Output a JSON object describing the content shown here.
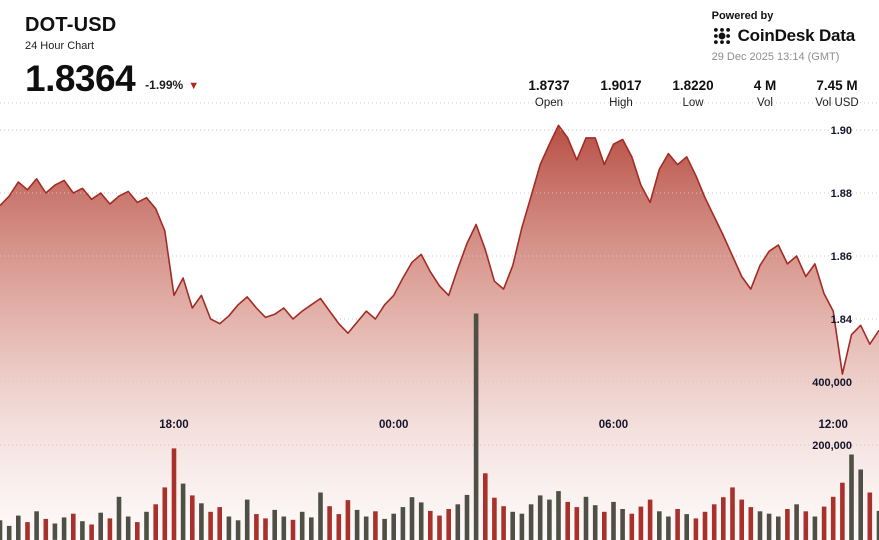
{
  "header": {
    "symbol": "DOT-USD",
    "subtitle": "24 Hour Chart",
    "price": "1.8364",
    "change": "-1.99%",
    "powered_by": "Powered by",
    "brand": "CoinDesk Data",
    "timestamp": "29 Dec 2025 13:14 (GMT)"
  },
  "icons": {
    "down_triangle": "▼"
  },
  "stats": [
    {
      "value": "1.8737",
      "label": "Open"
    },
    {
      "value": "1.9017",
      "label": "High"
    },
    {
      "value": "1.8220",
      "label": "Low"
    },
    {
      "value": "4 M",
      "label": "Vol"
    },
    {
      "value": "7.45 M",
      "label": "Vol USD"
    }
  ],
  "chart_data": {
    "type": "area",
    "title": "DOT-USD 24 Hour Chart",
    "open": 1.8737,
    "high": 1.9017,
    "low": 1.822,
    "close": 1.8364,
    "volume": "4 M",
    "volume_usd": "7.45 M",
    "x_axis": {
      "ticks": [
        {
          "label": "18:00",
          "index": 19
        },
        {
          "label": "00:00",
          "index": 43
        },
        {
          "label": "06:00",
          "index": 67
        },
        {
          "label": "12:00",
          "index": 91
        }
      ]
    },
    "price_axis": {
      "gridlines": [
        1.9086,
        1.9,
        1.88,
        1.86,
        1.84
      ],
      "labels": [
        {
          "value": 1.9,
          "text": "1.90"
        },
        {
          "value": 1.88,
          "text": "1.88"
        },
        {
          "value": 1.86,
          "text": "1.86"
        },
        {
          "value": 1.84,
          "text": "1.84"
        }
      ]
    },
    "volume_axis": {
      "labels": [
        "400,000",
        "200,000"
      ],
      "tick_values": [
        400000,
        200000
      ]
    },
    "price": [
      1.876,
      1.879,
      1.8835,
      1.881,
      1.8845,
      1.88,
      1.8825,
      1.884,
      1.88,
      1.8815,
      1.878,
      1.88,
      1.8765,
      1.879,
      1.8805,
      1.877,
      1.8785,
      1.875,
      1.868,
      1.8475,
      1.853,
      1.8435,
      1.8475,
      1.84,
      1.8385,
      1.841,
      1.8445,
      1.847,
      1.8435,
      1.8405,
      1.8415,
      1.8435,
      1.84,
      1.8425,
      1.8445,
      1.8465,
      1.8425,
      1.8385,
      1.8355,
      1.839,
      1.8425,
      1.84,
      1.8445,
      1.8475,
      1.853,
      1.858,
      1.8605,
      1.855,
      1.8505,
      1.8475,
      1.856,
      1.864,
      1.87,
      1.862,
      1.852,
      1.8495,
      1.857,
      1.869,
      1.879,
      1.889,
      1.8955,
      1.9015,
      1.8975,
      1.8905,
      1.8975,
      1.8975,
      1.889,
      1.8955,
      1.897,
      1.8915,
      1.8825,
      1.877,
      1.8875,
      1.8925,
      1.889,
      1.8915,
      1.8855,
      1.8785,
      1.8725,
      1.8665,
      1.86,
      1.8535,
      1.8495,
      1.857,
      1.8615,
      1.8635,
      1.8575,
      1.86,
      1.8535,
      1.8575,
      1.848,
      1.8425,
      1.8225,
      1.835,
      1.838,
      1.832,
      1.8364
    ],
    "volume_bars": [
      42000,
      30000,
      52000,
      38000,
      61000,
      45000,
      35000,
      48000,
      56000,
      40000,
      33000,
      58000,
      46000,
      92000,
      50000,
      38000,
      60000,
      76000,
      112000,
      195000,
      120000,
      95000,
      78000,
      60000,
      70000,
      50000,
      42000,
      86000,
      55000,
      46000,
      64000,
      50000,
      43000,
      60000,
      48000,
      101000,
      72000,
      55000,
      85000,
      64000,
      50000,
      61000,
      45000,
      56000,
      70000,
      91000,
      80000,
      62000,
      52000,
      66000,
      76000,
      96000,
      482000,
      142000,
      90000,
      72000,
      60000,
      56000,
      76000,
      95000,
      86000,
      104000,
      81000,
      70000,
      92000,
      74000,
      60000,
      81000,
      66000,
      56000,
      71000,
      86000,
      61000,
      50000,
      66000,
      55000,
      46000,
      60000,
      76000,
      91000,
      112000,
      86000,
      70000,
      61000,
      56000,
      50000,
      66000,
      76000,
      61000,
      50000,
      71000,
      92000,
      122000,
      182000,
      150000,
      101000,
      62000
    ],
    "line_color": "#a32c24",
    "area_gradient": [
      {
        "offset": 0,
        "color": "#ad372c",
        "opacity": 0.93
      },
      {
        "offset": 0.5,
        "color": "#d4897d",
        "opacity": 0.62
      },
      {
        "offset": 1,
        "color": "#f7e9e7",
        "opacity": 0.25
      }
    ],
    "volume_up_color": "#4e4f45",
    "volume_down_color": "#a8322b",
    "grid_color": "#c9c9c9"
  }
}
